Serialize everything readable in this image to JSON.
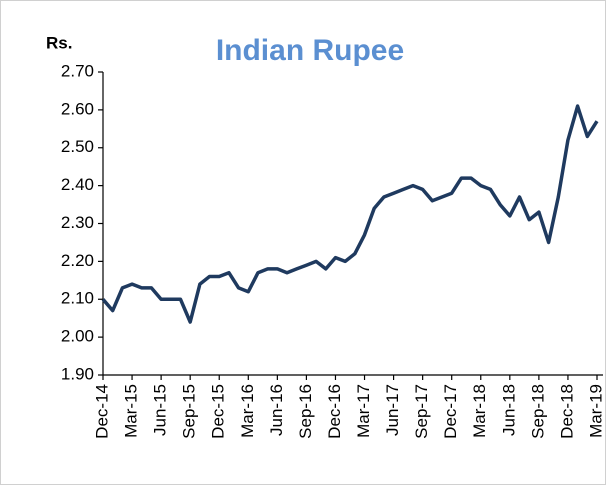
{
  "chart_data": {
    "type": "line",
    "title": "Indian Rupee",
    "y_label": "Rs.",
    "categories": [
      "Dec-14",
      null,
      null,
      "Mar-15",
      null,
      null,
      "Jun-15",
      null,
      null,
      "Sep-15",
      null,
      null,
      "Dec-15",
      null,
      null,
      "Mar-16",
      null,
      null,
      "Jun-16",
      null,
      null,
      "Sep-16",
      null,
      null,
      "Dec-16",
      null,
      null,
      "Mar-17",
      null,
      null,
      "Jun-17",
      null,
      null,
      "Sep-17",
      null,
      null,
      "Dec-17",
      null,
      null,
      "Mar-18",
      null,
      null,
      "Jun-18",
      null,
      null,
      "Sep-18",
      null,
      null,
      "Dec-18",
      null,
      null,
      "Mar-19"
    ],
    "values": [
      2.1,
      2.07,
      2.13,
      2.14,
      2.13,
      2.13,
      2.1,
      2.1,
      2.1,
      2.04,
      2.14,
      2.16,
      2.16,
      2.17,
      2.13,
      2.12,
      2.17,
      2.18,
      2.18,
      2.17,
      2.18,
      2.19,
      2.2,
      2.18,
      2.21,
      2.2,
      2.22,
      2.27,
      2.34,
      2.37,
      2.38,
      2.39,
      2.4,
      2.39,
      2.36,
      2.37,
      2.38,
      2.42,
      2.42,
      2.4,
      2.39,
      2.35,
      2.32,
      2.37,
      2.31,
      2.33,
      2.25,
      2.37,
      2.52,
      2.61,
      2.53,
      2.57
    ],
    "color": "#1f3a5f",
    "ylim": [
      1.9,
      2.7
    ],
    "yticks": [
      {
        "value": 1.9,
        "label": "1.90"
      },
      {
        "value": 2.0,
        "label": "2.00"
      },
      {
        "value": 2.1,
        "label": "2.10"
      },
      {
        "value": 2.2,
        "label": "2.20"
      },
      {
        "value": 2.3,
        "label": "2.30"
      },
      {
        "value": 2.4,
        "label": "2.40"
      },
      {
        "value": 2.5,
        "label": "2.50"
      },
      {
        "value": 2.6,
        "label": "2.60"
      },
      {
        "value": 2.7,
        "label": "2.70"
      }
    ],
    "grid": false
  }
}
